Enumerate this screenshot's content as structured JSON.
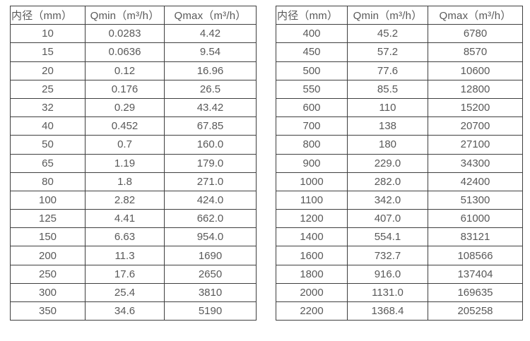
{
  "colors": {
    "border": "#3f3f3f",
    "text": "#595959",
    "background": "#ffffff"
  },
  "tables": [
    {
      "headers": [
        "内径（mm）",
        "Qmin（m³/h）",
        "Qmax（m³/h）"
      ],
      "rows": [
        [
          "10",
          "0.0283",
          "4.42"
        ],
        [
          "15",
          "0.0636",
          "9.54"
        ],
        [
          "20",
          "0.12",
          "16.96"
        ],
        [
          "25",
          "0.176",
          "26.5"
        ],
        [
          "32",
          "0.29",
          "43.42"
        ],
        [
          "40",
          "0.452",
          "67.85"
        ],
        [
          "50",
          "0.7",
          "160.0"
        ],
        [
          "65",
          "1.19",
          "179.0"
        ],
        [
          "80",
          "1.8",
          "271.0"
        ],
        [
          "100",
          "2.82",
          "424.0"
        ],
        [
          "125",
          "4.41",
          "662.0"
        ],
        [
          "150",
          "6.63",
          "954.0"
        ],
        [
          "200",
          "11.3",
          "1690"
        ],
        [
          "250",
          "17.6",
          "2650"
        ],
        [
          "300",
          "25.4",
          "3810"
        ],
        [
          "350",
          "34.6",
          "5190"
        ]
      ]
    },
    {
      "headers": [
        "内径（mm）",
        "Qmin（m³/h）",
        "Qmax（m³/h）"
      ],
      "rows": [
        [
          "400",
          "45.2",
          "6780"
        ],
        [
          "450",
          "57.2",
          "8570"
        ],
        [
          "500",
          "77.6",
          "10600"
        ],
        [
          "550",
          "85.5",
          "12800"
        ],
        [
          "600",
          "110",
          "15200"
        ],
        [
          "700",
          "138",
          "20700"
        ],
        [
          "800",
          "180",
          "27100"
        ],
        [
          "900",
          "229.0",
          "34300"
        ],
        [
          "1000",
          "282.0",
          "42400"
        ],
        [
          "1100",
          "342.0",
          "51300"
        ],
        [
          "1200",
          "407.0",
          "61000"
        ],
        [
          "1400",
          "554.1",
          "83121"
        ],
        [
          "1600",
          "732.7",
          "108566"
        ],
        [
          "1800",
          "916.0",
          "137404"
        ],
        [
          "2000",
          "1131.0",
          "169635"
        ],
        [
          "2200",
          "1368.4",
          "205258"
        ]
      ]
    }
  ]
}
